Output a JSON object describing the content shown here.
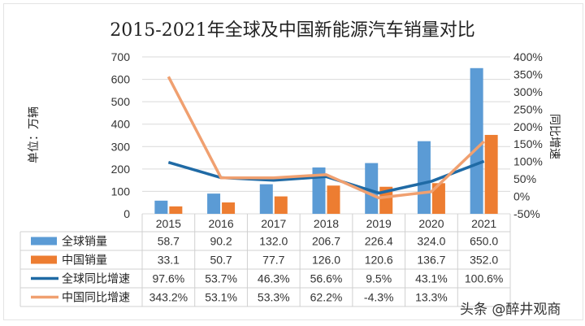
{
  "chart_data": {
    "type": "bar",
    "title": "2015-2021年全球及中国新能源汽车销量对比",
    "ylabel": "单位：万辆",
    "y2label": "同比增速",
    "categories": [
      "2015",
      "2016",
      "2017",
      "2018",
      "2019",
      "2020",
      "2021"
    ],
    "ylim": [
      0,
      700
    ],
    "yticks": [
      "0",
      "100",
      "200",
      "300",
      "400",
      "500",
      "600",
      "700"
    ],
    "y2lim": [
      -50,
      400
    ],
    "y2ticks": [
      "-50%",
      "0%",
      "50%",
      "100%",
      "150%",
      "200%",
      "250%",
      "300%",
      "350%",
      "400%"
    ],
    "grid": true,
    "legend": "table-bottom",
    "series": [
      {
        "name": "全球销量",
        "kind": "bar",
        "axis": "left",
        "color": "#5b9bd5",
        "values": [
          58.7,
          90.2,
          132.0,
          206.7,
          226.4,
          324.0,
          650.0
        ]
      },
      {
        "name": "中国销量",
        "kind": "bar",
        "axis": "left",
        "color": "#ed7d31",
        "values": [
          33.1,
          50.7,
          77.7,
          126.0,
          120.6,
          136.7,
          352.0
        ]
      },
      {
        "name": "全球同比增速",
        "kind": "line",
        "axis": "right",
        "color": "#1f6aa5",
        "values": [
          97.6,
          53.7,
          46.3,
          56.6,
          9.5,
          43.1,
          100.6
        ]
      },
      {
        "name": "中国同比增速",
        "kind": "line",
        "axis": "right",
        "color": "#f0a070",
        "values": [
          343.2,
          53.1,
          53.3,
          62.2,
          -4.3,
          13.3,
          157.5
        ]
      }
    ],
    "table": [
      [
        "58.7",
        "90.2",
        "132.0",
        "206.7",
        "226.4",
        "324.0",
        "650.0"
      ],
      [
        "33.1",
        "50.7",
        "77.7",
        "126.0",
        "120.6",
        "136.7",
        "352.0"
      ],
      [
        "97.6%",
        "53.7%",
        "46.3%",
        "56.6%",
        "9.5%",
        "43.1%",
        "100.6%"
      ],
      [
        "343.2%",
        "53.1%",
        "53.3%",
        "62.2%",
        "-4.3%",
        "13.3%",
        ""
      ]
    ]
  },
  "watermark": "头条 @醉井观商"
}
